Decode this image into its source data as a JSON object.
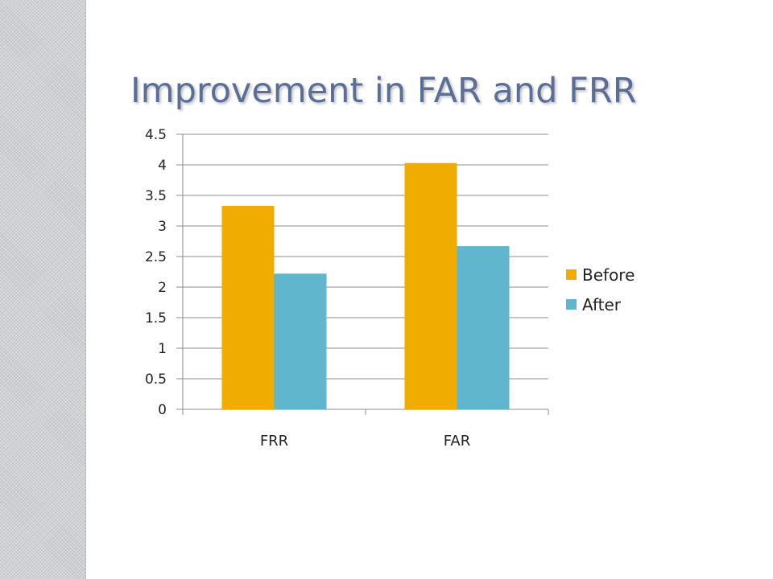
{
  "slide": {
    "title": "Improvement in FAR and FRR"
  },
  "chart_data": {
    "type": "bar",
    "categories": [
      "FRR",
      "FAR"
    ],
    "series": [
      {
        "name": "Before",
        "values": [
          3.33,
          4.03
        ],
        "color": "#f0ad00"
      },
      {
        "name": "After",
        "values": [
          2.22,
          2.67
        ],
        "color": "#5fb6cd"
      }
    ],
    "ylim": [
      0,
      4.5
    ],
    "y_ticks": [
      "0",
      "0.5",
      "1",
      "1.5",
      "2",
      "2.5",
      "3",
      "3.5",
      "4",
      "4.5"
    ],
    "grid": true,
    "legend": "right"
  },
  "colors": {
    "title": "#5b6f96",
    "gridline": "#8c8c8c"
  }
}
